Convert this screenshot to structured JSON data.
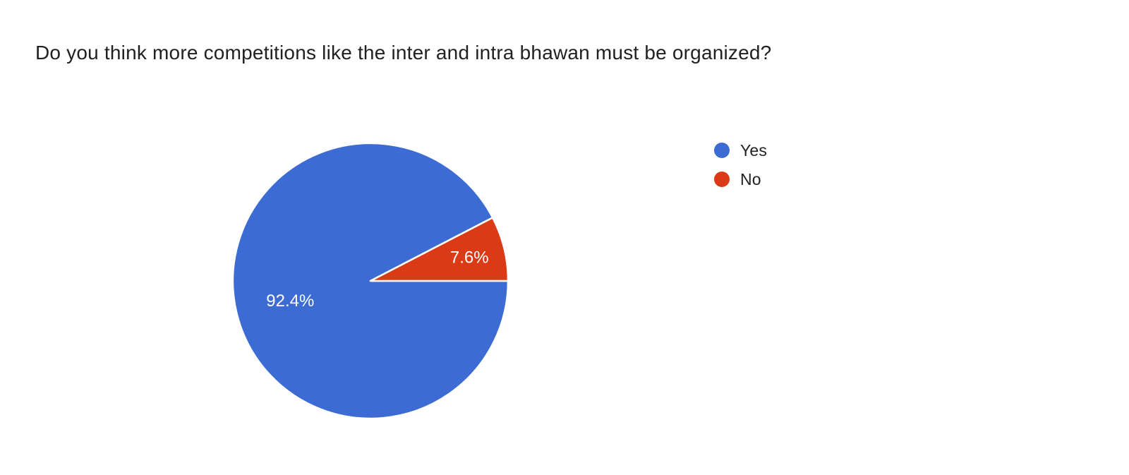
{
  "page": {
    "background": "#ffffff"
  },
  "chart_data": {
    "type": "pie",
    "title": "Do you think more competitions like the inter and intra bhawan must be organized?",
    "labels": [
      "Yes",
      "No"
    ],
    "values": [
      92.4,
      7.6
    ],
    "slice_labels": [
      "92.4%",
      "7.6%"
    ],
    "colors": [
      "#3b6bd3",
      "#db3a17"
    ],
    "slice_label_color": "#ffffff",
    "text_color": "#212121",
    "legend_position": "right",
    "start_angle_deg": 0,
    "direction": "clockwise",
    "separator_color": "#ffffff"
  }
}
